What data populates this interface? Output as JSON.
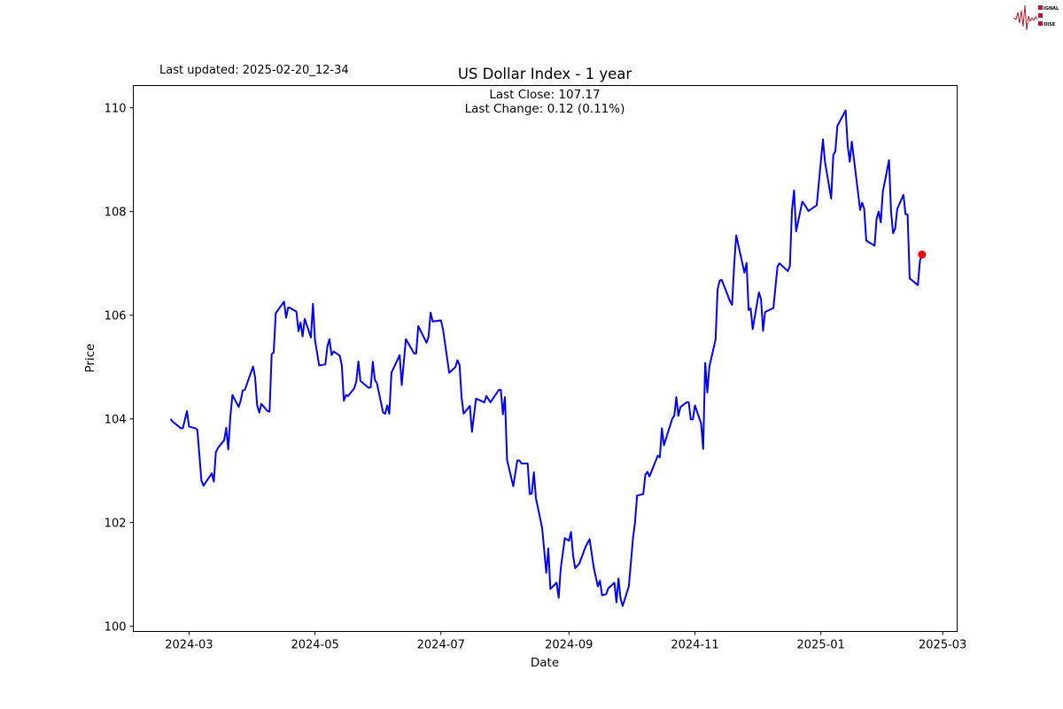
{
  "header": {
    "last_updated": "Last updated: 2025-02-20_12-34",
    "logo_text": "SIGNAL 2 NOISE"
  },
  "chart_data": {
    "type": "line",
    "title": "US Dollar Index - 1 year",
    "annotation_close": "Last Close: 107.17",
    "annotation_change": "Last Change: 0.12 (0.11%)",
    "xlabel": "Date",
    "ylabel": "Price",
    "xlim": [
      "2024-02-03",
      "2025-03-08"
    ],
    "ylim": [
      99.9,
      110.43
    ],
    "yticks": [
      100,
      102,
      104,
      106,
      108,
      110
    ],
    "ytick_labels": [
      "100",
      "102",
      "104",
      "106",
      "108",
      "110"
    ],
    "xticks": [
      "2024-03-01",
      "2024-05-01",
      "2024-07-01",
      "2024-09-01",
      "2024-11-01",
      "2025-01-01",
      "2025-03-01"
    ],
    "xtick_labels": [
      "2024-03",
      "2024-05",
      "2024-07",
      "2024-09",
      "2024-11",
      "2025-01",
      "2025-03"
    ],
    "grid": false,
    "line_color": "#0000ff",
    "marker_color": "#ff0000",
    "last_point": {
      "x": "2025-02-19",
      "y": 107.17
    },
    "x": [
      "2024-02-21",
      "2024-02-22",
      "2024-02-26",
      "2024-02-27",
      "2024-02-29",
      "2024-03-01",
      "2024-03-04",
      "2024-03-05",
      "2024-03-07",
      "2024-03-08",
      "2024-03-12",
      "2024-03-13",
      "2024-03-14",
      "2024-03-15",
      "2024-03-18",
      "2024-03-19",
      "2024-03-20",
      "2024-03-21",
      "2024-03-22",
      "2024-03-25",
      "2024-03-26",
      "2024-03-27",
      "2024-03-28",
      "2024-04-01",
      "2024-04-02",
      "2024-04-03",
      "2024-04-04",
      "2024-04-05",
      "2024-04-08",
      "2024-04-09",
      "2024-04-10",
      "2024-04-11",
      "2024-04-12",
      "2024-04-16",
      "2024-04-17",
      "2024-04-18",
      "2024-04-19",
      "2024-04-22",
      "2024-04-23",
      "2024-04-24",
      "2024-04-25",
      "2024-04-26",
      "2024-04-29",
      "2024-04-30",
      "2024-05-01",
      "2024-05-03",
      "2024-05-06",
      "2024-05-07",
      "2024-05-08",
      "2024-05-09",
      "2024-05-10",
      "2024-05-13",
      "2024-05-14",
      "2024-05-15",
      "2024-05-16",
      "2024-05-17",
      "2024-05-20",
      "2024-05-21",
      "2024-05-22",
      "2024-05-23",
      "2024-05-27",
      "2024-05-28",
      "2024-05-29",
      "2024-05-30",
      "2024-05-31",
      "2024-06-03",
      "2024-06-04",
      "2024-06-05",
      "2024-06-06",
      "2024-06-07",
      "2024-06-11",
      "2024-06-12",
      "2024-06-14",
      "2024-06-18",
      "2024-06-19",
      "2024-06-20",
      "2024-06-24",
      "2024-06-25",
      "2024-06-26",
      "2024-06-27",
      "2024-07-01",
      "2024-07-02",
      "2024-07-05",
      "2024-07-08",
      "2024-07-09",
      "2024-07-10",
      "2024-07-11",
      "2024-07-12",
      "2024-07-15",
      "2024-07-16",
      "2024-07-18",
      "2024-07-22",
      "2024-07-23",
      "2024-07-25",
      "2024-07-29",
      "2024-07-30",
      "2024-07-31",
      "2024-08-01",
      "2024-08-02",
      "2024-08-05",
      "2024-08-07",
      "2024-08-08",
      "2024-08-09",
      "2024-08-12",
      "2024-08-13",
      "2024-08-14",
      "2024-08-15",
      "2024-08-16",
      "2024-08-19",
      "2024-08-21",
      "2024-08-22",
      "2024-08-23",
      "2024-08-26",
      "2024-08-27",
      "2024-08-28",
      "2024-08-30",
      "2024-09-01",
      "2024-09-02",
      "2024-09-03",
      "2024-09-04",
      "2024-09-06",
      "2024-09-09",
      "2024-09-11",
      "2024-09-13",
      "2024-09-15",
      "2024-09-16",
      "2024-09-17",
      "2024-09-19",
      "2024-09-20",
      "2024-09-23",
      "2024-09-24",
      "2024-09-25",
      "2024-09-26",
      "2024-09-27",
      "2024-09-30",
      "2024-10-02",
      "2024-10-03",
      "2024-10-04",
      "2024-10-07",
      "2024-10-08",
      "2024-10-09",
      "2024-10-10",
      "2024-10-14",
      "2024-10-15",
      "2024-10-16",
      "2024-10-17",
      "2024-10-21",
      "2024-10-22",
      "2024-10-23",
      "2024-10-24",
      "2024-10-25",
      "2024-10-28",
      "2024-10-29",
      "2024-10-30",
      "2024-10-31",
      "2024-11-01",
      "2024-11-04",
      "2024-11-05",
      "2024-11-06",
      "2024-11-07",
      "2024-11-08",
      "2024-11-11",
      "2024-11-12",
      "2024-11-13",
      "2024-11-14",
      "2024-11-18",
      "2024-11-19",
      "2024-11-20",
      "2024-11-21",
      "2024-11-25",
      "2024-11-26",
      "2024-11-27",
      "2024-11-28",
      "2024-11-29",
      "2024-12-02",
      "2024-12-03",
      "2024-12-04",
      "2024-12-05",
      "2024-12-09",
      "2024-12-11",
      "2024-12-12",
      "2024-12-16",
      "2024-12-17",
      "2024-12-18",
      "2024-12-19",
      "2024-12-20",
      "2024-12-23",
      "2024-12-24",
      "2024-12-26",
      "2024-12-30",
      "2025-01-02",
      "2025-01-03",
      "2025-01-06",
      "2025-01-07",
      "2025-01-08",
      "2025-01-09",
      "2025-01-13",
      "2025-01-14",
      "2025-01-15",
      "2025-01-16",
      "2025-01-20",
      "2025-01-21",
      "2025-01-22",
      "2025-01-23",
      "2025-01-27",
      "2025-01-28",
      "2025-01-29",
      "2025-01-30",
      "2025-01-31",
      "2025-02-03",
      "2025-02-04",
      "2025-02-05",
      "2025-02-06",
      "2025-02-07",
      "2025-02-10",
      "2025-02-11",
      "2025-02-12",
      "2025-02-13",
      "2025-02-17",
      "2025-02-18",
      "2025-02-19"
    ],
    "y": [
      104.0,
      103.95,
      103.82,
      103.82,
      104.15,
      103.85,
      103.82,
      103.79,
      102.81,
      102.71,
      102.95,
      102.79,
      103.36,
      103.44,
      103.59,
      103.83,
      103.41,
      104.03,
      104.46,
      104.23,
      104.35,
      104.55,
      104.56,
      105.01,
      104.8,
      104.26,
      104.12,
      104.29,
      104.15,
      104.14,
      105.25,
      105.28,
      106.04,
      106.26,
      105.95,
      106.15,
      106.14,
      106.07,
      105.69,
      105.86,
      105.59,
      105.93,
      105.57,
      106.22,
      105.52,
      105.03,
      105.05,
      105.4,
      105.54,
      105.23,
      105.3,
      105.22,
      105.03,
      104.35,
      104.46,
      104.44,
      104.59,
      104.72,
      105.11,
      104.73,
      104.6,
      104.61,
      105.1,
      104.75,
      104.69,
      104.12,
      104.1,
      104.26,
      104.1,
      104.89,
      105.23,
      104.65,
      105.54,
      105.26,
      105.26,
      105.79,
      105.47,
      105.58,
      106.05,
      105.88,
      105.9,
      105.73,
      104.89,
      105.0,
      105.13,
      105.04,
      104.41,
      104.1,
      104.25,
      103.75,
      104.39,
      104.32,
      104.44,
      104.32,
      104.56,
      104.56,
      104.09,
      104.42,
      103.21,
      102.7,
      103.2,
      103.2,
      103.14,
      103.14,
      102.55,
      102.56,
      102.97,
      102.47,
      101.9,
      101.03,
      101.5,
      100.72,
      100.84,
      100.55,
      101.11,
      101.7,
      101.65,
      101.82,
      101.36,
      101.12,
      101.21,
      101.53,
      101.68,
      101.13,
      100.77,
      100.88,
      100.6,
      100.62,
      100.73,
      100.84,
      100.46,
      100.92,
      100.53,
      100.39,
      100.77,
      101.7,
      102.01,
      102.52,
      102.55,
      102.92,
      102.98,
      102.89,
      103.29,
      103.26,
      103.82,
      103.49,
      104.0,
      104.06,
      104.42,
      104.06,
      104.23,
      104.32,
      104.32,
      103.99,
      103.99,
      104.26,
      103.91,
      103.42,
      105.08,
      104.51,
      105.01,
      105.53,
      106.5,
      106.67,
      106.68,
      106.27,
      106.2,
      106.97,
      107.54,
      106.82,
      107.01,
      106.1,
      106.13,
      105.73,
      106.44,
      106.31,
      105.7,
      106.06,
      106.14,
      106.94,
      107.0,
      106.85,
      106.95,
      108.02,
      108.41,
      107.62,
      108.19,
      108.14,
      108.01,
      108.12,
      109.39,
      108.96,
      108.25,
      109.09,
      109.16,
      109.65,
      109.95,
      109.26,
      108.96,
      109.35,
      108.03,
      108.17,
      108.05,
      107.44,
      107.34,
      107.86,
      108.0,
      107.79,
      108.38,
      108.99,
      108.0,
      107.58,
      107.68,
      108.05,
      108.32,
      107.95,
      107.94,
      106.71,
      106.58,
      107.05,
      107.17
    ]
  }
}
